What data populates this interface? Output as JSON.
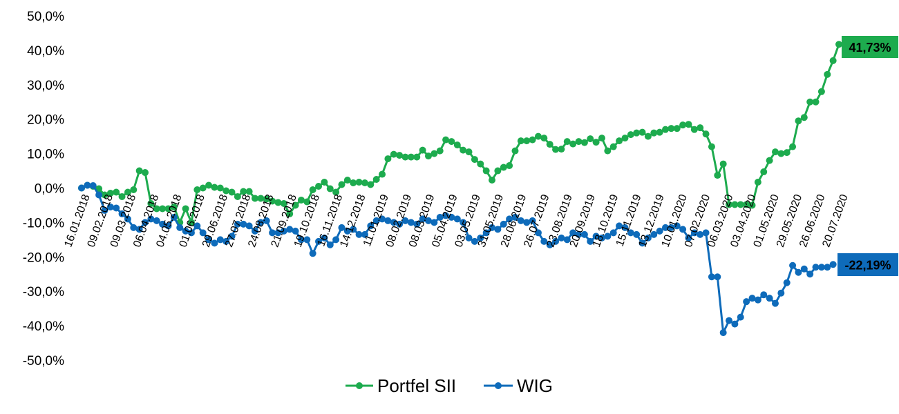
{
  "chart_data": {
    "type": "line",
    "y_axis": {
      "min": -50,
      "max": 50,
      "step": 10,
      "tick_labels": [
        "50,0%",
        "40,0%",
        "30,0%",
        "20,0%",
        "10,0%",
        "0,0%",
        "-10,0%",
        "-20,0%",
        "-30,0%",
        "-40,0%",
        "-50,0%"
      ]
    },
    "x_tick_labels": [
      "16.01.2018",
      "09.02.2018",
      "09.03.2018",
      "06.04.2018",
      "04.05.2018",
      "01.06.2018",
      "29.06.2018",
      "27.07.2018",
      "24.08.2018",
      "21.09.2018",
      "19.10.2018",
      "16.11.2018",
      "14.12.2018",
      "11.01.2019",
      "08.02.2019",
      "08.03.2019",
      "05.04.2019",
      "03.05.2019",
      "31.05.2019",
      "28.06.2019",
      "26.07.2019",
      "23.08.2019",
      "20.09.2019",
      "18.10.2019",
      "15.11.2019",
      "13.12.2019",
      "10.01.2020",
      "07.02.2020",
      "06.03.2020",
      "03.04.2020",
      "01.05.2020",
      "29.05.2020",
      "26.06.2020",
      "20.07.2020"
    ],
    "grid": false,
    "legend_position": "bottom",
    "series": [
      {
        "name": "Portfel SII",
        "color": "#1DAB4E",
        "end_label": "41,73%",
        "values": [
          0.0,
          0.8,
          0.5,
          -0.2,
          -2.0,
          -1.5,
          -1.2,
          -2.5,
          -1.2,
          -0.5,
          5.0,
          4.5,
          -4.5,
          -6.0,
          -6.0,
          -6.0,
          -5.5,
          -10.0,
          -6.0,
          -10.0,
          -0.5,
          0.0,
          0.8,
          0.2,
          0.0,
          -0.8,
          -1.2,
          -2.5,
          -1.0,
          -1.0,
          -3.0,
          -3.0,
          -3.2,
          -3.8,
          -4.2,
          -4.5,
          -7.5,
          -5.0,
          -3.5,
          -4.0,
          -0.5,
          0.5,
          1.7,
          -0.2,
          -1.2,
          1.0,
          2.3,
          1.5,
          1.7,
          1.5,
          1.0,
          2.5,
          4.0,
          8.5,
          9.8,
          9.5,
          9.0,
          9.0,
          9.0,
          11.0,
          9.3,
          10.0,
          10.8,
          14.0,
          13.5,
          12.5,
          11.0,
          10.5,
          8.3,
          7.0,
          5.0,
          2.3,
          5.0,
          6.0,
          6.5,
          10.8,
          13.7,
          13.7,
          14.0,
          15.0,
          14.5,
          12.7,
          11.2,
          11.3,
          13.5,
          12.8,
          13.5,
          13.2,
          14.3,
          13.3,
          14.5,
          10.8,
          12.0,
          13.7,
          14.5,
          15.5,
          16.0,
          16.2,
          15.0,
          16.0,
          16.2,
          17.0,
          17.3,
          17.3,
          18.3,
          18.5,
          17.0,
          17.5,
          15.7,
          12.0,
          3.7,
          7.0,
          -4.8,
          -4.8,
          -4.8,
          -4.8,
          -5.0,
          1.7,
          4.7,
          8.0,
          10.5,
          10.0,
          10.3,
          12.0,
          19.5,
          20.5,
          25.0,
          25.0,
          28.0,
          33.0,
          37.0,
          41.73
        ]
      },
      {
        "name": "WIG",
        "color": "#0E6BBA",
        "end_label": "-22,19%",
        "values": [
          0.0,
          0.8,
          0.7,
          -2.0,
          -6.5,
          -5.5,
          -5.8,
          -7.5,
          -9.0,
          -11.5,
          -12.0,
          -10.0,
          -9.0,
          -9.5,
          -10.5,
          -11.0,
          -8.5,
          -11.5,
          -12.5,
          -13.0,
          -11.0,
          -13.0,
          -15.0,
          -16.0,
          -15.0,
          -15.5,
          -14.0,
          -10.5,
          -10.5,
          -11.0,
          -12.5,
          -10.0,
          -9.5,
          -13.0,
          -13.0,
          -12.5,
          -12.0,
          -12.5,
          -15.0,
          -15.0,
          -19.0,
          -15.5,
          -14.5,
          -16.5,
          -15.0,
          -11.5,
          -12.5,
          -12.0,
          -13.5,
          -13.5,
          -11.0,
          -9.5,
          -9.0,
          -9.5,
          -10.0,
          -10.5,
          -9.5,
          -10.0,
          -10.5,
          -9.0,
          -9.5,
          -10.0,
          -8.5,
          -8.0,
          -8.5,
          -9.0,
          -10.0,
          -14.5,
          -15.5,
          -14.5,
          -13.0,
          -11.5,
          -12.0,
          -10.5,
          -9.0,
          -8.5,
          -9.5,
          -10.0,
          -9.5,
          -13.0,
          -15.5,
          -16.5,
          -15.5,
          -14.5,
          -15.0,
          -13.0,
          -13.5,
          -13.5,
          -15.5,
          -14.0,
          -14.5,
          -14.0,
          -13.0,
          -11.0,
          -11.5,
          -13.0,
          -13.5,
          -16.0,
          -14.5,
          -13.5,
          -12.5,
          -11.5,
          -11.5,
          -11.0,
          -12.0,
          -14.5,
          -13.0,
          -13.5,
          -13.0,
          -25.8,
          -25.8,
          -42.0,
          -38.5,
          -39.5,
          -37.5,
          -33.0,
          -32.0,
          -32.5,
          -31.0,
          -32.0,
          -33.5,
          -30.5,
          -27.5,
          -22.5,
          -24.5,
          -23.5,
          -25.0,
          -23.0,
          -23.0,
          -23.0,
          -22.19
        ]
      }
    ]
  }
}
